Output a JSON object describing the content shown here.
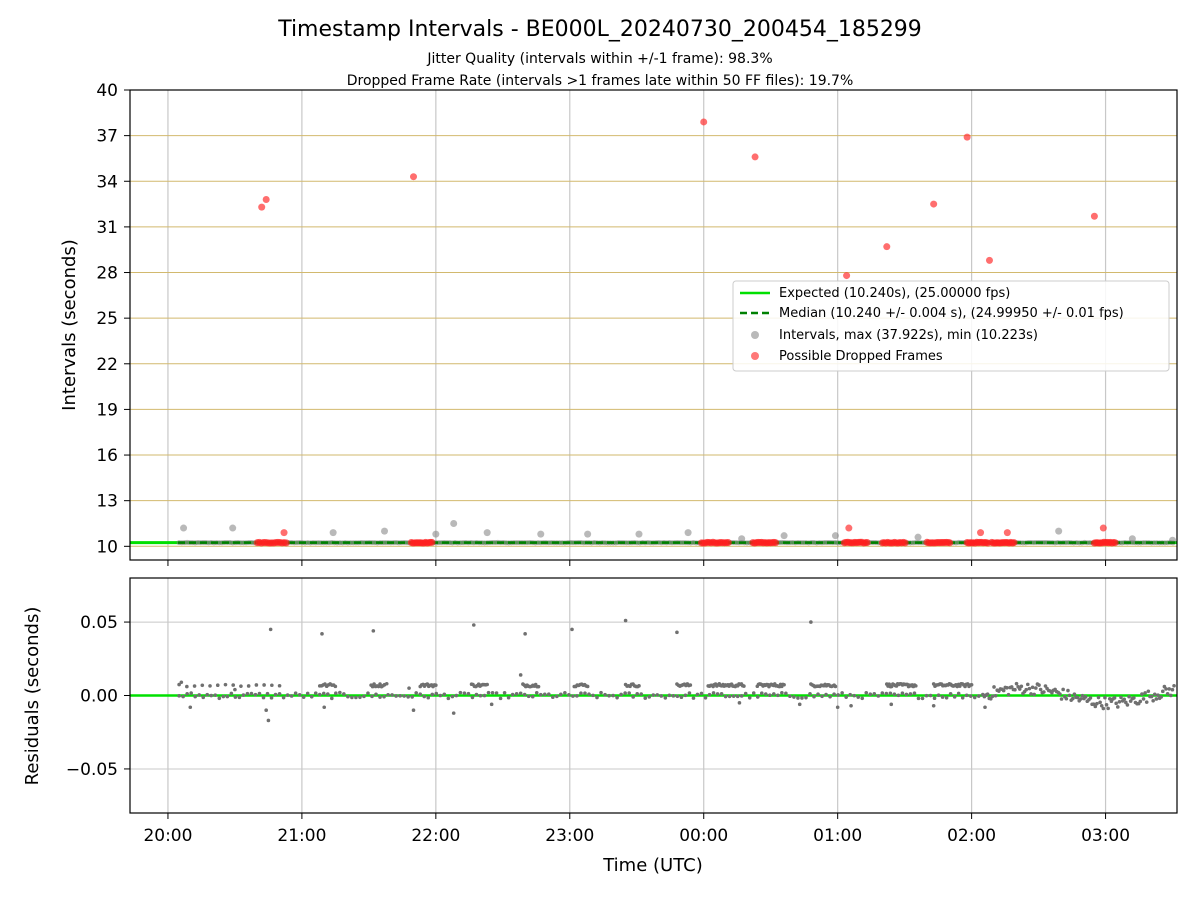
{
  "chart_data": [
    {
      "type": "scatter",
      "title": "Timestamp Intervals - BE000L_20240730_200454_185299",
      "subtitle_lines": [
        "Jitter Quality (intervals within +/-1 frame): 98.3%",
        "Dropped Frame Rate (intervals >1 frames late within 50 FF files): 19.7%"
      ],
      "xlabel": "",
      "ylabel": "Intervals (seconds)",
      "x_ticks": [
        "20:00",
        "21:00",
        "22:00",
        "23:00",
        "00:00",
        "01:00",
        "02:00",
        "03:00"
      ],
      "xlim": [
        "19:43",
        "03:32"
      ],
      "y_ticks": [
        10,
        13,
        16,
        19,
        22,
        25,
        28,
        31,
        34,
        37,
        40
      ],
      "ylim": [
        9.1,
        40
      ],
      "grid": true,
      "legend_position": "center-right",
      "expected_interval": 10.24,
      "median_interval": 10.24,
      "series": [
        {
          "name": "Expected (10.240s), (25.00000 fps)",
          "kind": "hline",
          "y": 10.24,
          "color": "#00e000"
        },
        {
          "name": "Median (10.240 +/- 0.004 s), (24.99950 +/- 0.01 fps)",
          "kind": "hline-dashed",
          "y": 10.24,
          "color": "#008000"
        },
        {
          "name": "Intervals, max (37.922s), min (10.223s)",
          "kind": "points",
          "color": "#808080",
          "points": [
            [
              "20:07",
              11.2
            ],
            [
              "20:29",
              11.2
            ],
            [
              "21:14",
              10.9
            ],
            [
              "21:37",
              11.0
            ],
            [
              "22:00",
              10.8
            ],
            [
              "22:08",
              11.5
            ],
            [
              "22:23",
              10.9
            ],
            [
              "22:47",
              10.8
            ],
            [
              "23:08",
              10.8
            ],
            [
              "23:31",
              10.8
            ],
            [
              "23:53",
              10.9
            ],
            [
              "00:17",
              10.5
            ],
            [
              "00:36",
              10.7
            ],
            [
              "00:59",
              10.7
            ],
            [
              "01:36",
              10.6
            ],
            [
              "02:39",
              11.0
            ],
            [
              "03:12",
              10.5
            ],
            [
              "03:30",
              10.4
            ]
          ]
        },
        {
          "name": "Possible Dropped Frames",
          "kind": "points",
          "color": "#ff3030",
          "points": [
            [
              "20:42",
              32.3
            ],
            [
              "20:44",
              32.8
            ],
            [
              "20:52",
              10.9
            ],
            [
              "21:50",
              34.3
            ],
            [
              "00:00",
              37.9
            ],
            [
              "00:23",
              35.6
            ],
            [
              "01:04",
              27.8
            ],
            [
              "01:05",
              11.2
            ],
            [
              "01:22",
              29.7
            ],
            [
              "01:43",
              32.5
            ],
            [
              "01:58",
              36.9
            ],
            [
              "02:04",
              10.9
            ],
            [
              "02:08",
              28.8
            ],
            [
              "02:16",
              10.9
            ],
            [
              "02:55",
              31.7
            ],
            [
              "02:59",
              11.2
            ]
          ],
          "clusters_at_expected": [
            [
              "20:40",
              "20:53"
            ],
            [
              "21:49",
              "21:59"
            ],
            [
              "23:59",
              "00:11"
            ],
            [
              "00:22",
              "00:33"
            ],
            [
              "01:03",
              "01:14"
            ],
            [
              "01:20",
              "01:31"
            ],
            [
              "01:40",
              "01:51"
            ],
            [
              "01:58",
              "02:08"
            ],
            [
              "02:09",
              "02:19"
            ],
            [
              "02:55",
              "03:05"
            ]
          ]
        }
      ]
    },
    {
      "type": "scatter",
      "title": "",
      "xlabel": "Time (UTC)",
      "ylabel": "Residuals (seconds)",
      "x_ticks": [
        "20:00",
        "21:00",
        "22:00",
        "23:00",
        "00:00",
        "01:00",
        "02:00",
        "03:00"
      ],
      "xlim": [
        "19:43",
        "03:32"
      ],
      "y_ticks": [
        0.05,
        0.0,
        -0.05
      ],
      "y_tick_labels": [
        "0.05",
        "0.00",
        "−0.05"
      ],
      "ylim": [
        -0.08,
        0.08
      ],
      "grid": true,
      "zero_line_color": "#00e000",
      "series": [
        {
          "name": "",
          "kind": "points",
          "color": "#707070",
          "note_outliers": [
            [
              "20:46",
              0.045
            ],
            [
              "21:09",
              0.042
            ],
            [
              "21:32",
              0.044
            ],
            [
              "22:17",
              0.048
            ],
            [
              "22:40",
              0.042
            ],
            [
              "23:01",
              0.045
            ],
            [
              "23:25",
              0.051
            ],
            [
              "23:48",
              0.043
            ],
            [
              "00:48",
              0.05
            ]
          ],
          "segments": [
            {
              "t0": "20:05",
              "t1": "20:50",
              "level": 0.007,
              "n": 14
            },
            {
              "t0": "21:08",
              "t1": "21:15",
              "level": 0.007,
              "n": 10
            },
            {
              "t0": "21:31",
              "t1": "21:37",
              "level": 0.007,
              "n": 10
            },
            {
              "t0": "21:53",
              "t1": "22:00",
              "level": 0.007,
              "n": 12
            },
            {
              "t0": "22:16",
              "t1": "22:23",
              "level": 0.007,
              "n": 12
            },
            {
              "t0": "22:39",
              "t1": "22:46",
              "level": 0.007,
              "n": 12
            },
            {
              "t0": "23:02",
              "t1": "23:08",
              "level": 0.007,
              "n": 10
            },
            {
              "t0": "23:25",
              "t1": "23:31",
              "level": 0.007,
              "n": 10
            },
            {
              "t0": "23:48",
              "t1": "23:54",
              "level": 0.007,
              "n": 10
            },
            {
              "t0": "00:02",
              "t1": "00:18",
              "level": 0.007,
              "n": 30
            },
            {
              "t0": "00:24",
              "t1": "00:36",
              "level": 0.007,
              "n": 24
            },
            {
              "t0": "00:48",
              "t1": "00:59",
              "level": 0.007,
              "n": 20
            },
            {
              "t0": "01:22",
              "t1": "01:35",
              "level": 0.007,
              "n": 25
            },
            {
              "t0": "01:43",
              "t1": "02:00",
              "level": 0.007,
              "n": 30
            }
          ]
        }
      ]
    }
  ]
}
